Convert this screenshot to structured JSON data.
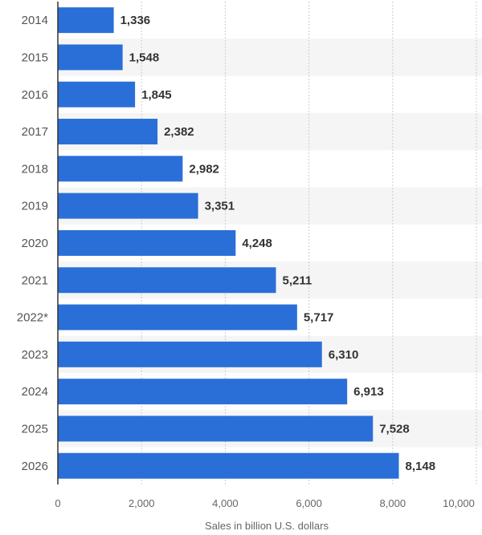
{
  "chart_data": {
    "type": "bar",
    "orientation": "horizontal",
    "categories": [
      "2014",
      "2015",
      "2016",
      "2017",
      "2018",
      "2019",
      "2020",
      "2021",
      "2022*",
      "2023",
      "2024",
      "2025",
      "2026"
    ],
    "values": [
      1336,
      1548,
      1845,
      2382,
      2982,
      3351,
      4248,
      5211,
      5717,
      6310,
      6913,
      7528,
      8148
    ],
    "data_labels": [
      "1,336",
      "1,548",
      "1,845",
      "2,382",
      "2,982",
      "3,351",
      "4,248",
      "5,211",
      "5,717",
      "6,310",
      "6,913",
      "7,528",
      "8,148"
    ],
    "xlabel": "Sales in billion U.S. dollars",
    "ylabel": "",
    "xlim": [
      0,
      10000
    ],
    "xticks": [
      0,
      2000,
      4000,
      6000,
      8000,
      10000
    ],
    "xtick_labels": [
      "0",
      "2,000",
      "4,000",
      "6,000",
      "8,000",
      "10,000"
    ],
    "grid": "vertical dashed",
    "bar_color": "#2a6fd8",
    "stripe_color": "#f5f5f5"
  }
}
